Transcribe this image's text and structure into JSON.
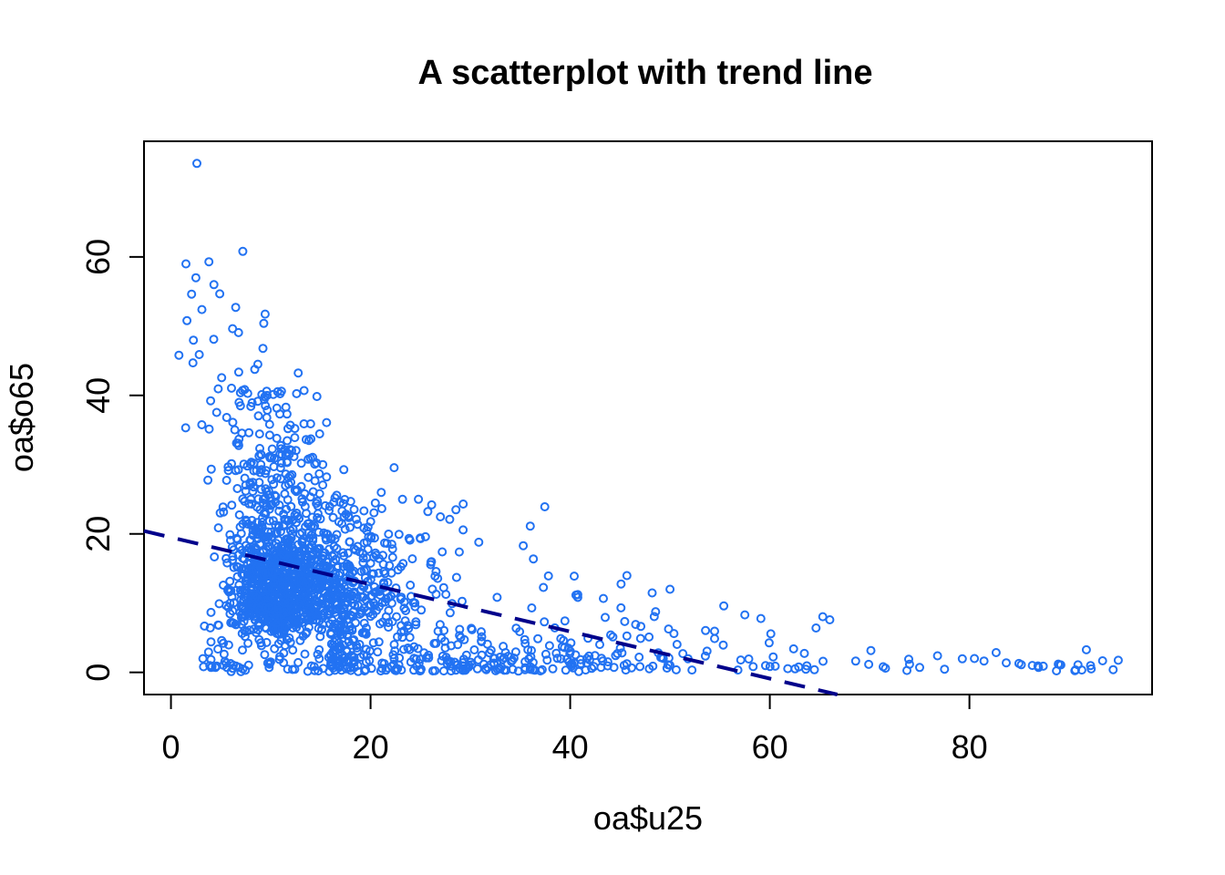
{
  "chart_data": {
    "type": "scatter",
    "title": "A scatterplot with trend line",
    "xlabel": "oa$u25",
    "ylabel": "oa$o65",
    "x_ticks": [
      0,
      20,
      40,
      60,
      80
    ],
    "y_ticks": [
      0,
      20,
      40,
      60
    ],
    "xlim": [
      -2.7,
      98.3
    ],
    "ylim": [
      -3.2,
      76.7
    ],
    "grid": false,
    "legend": "none",
    "background_color": "#ffffff",
    "frame_color": "#000000",
    "point_style": {
      "shape": "open-circle",
      "color": "#2272f2",
      "radius": 4,
      "stroke_width": 2
    },
    "trend_line": {
      "type": "linear",
      "intercept": 19.5,
      "slope": -0.34,
      "color": "#00008B",
      "style": "dashed",
      "dash": [
        23,
        15
      ],
      "width": 4,
      "x_at_y0": 57.4
    },
    "point_cloud_summary": {
      "n_points_approx": 1920,
      "x_range_observed": [
        0.8,
        94.4
      ],
      "y_range_observed": [
        0.1,
        73.5
      ],
      "main_cluster_center": [
        12,
        14
      ],
      "description": "dense cluster near x 5-22 / y 3-30, thinning spread to x 50, sparse low tail to x 95, vertical outlier column up to y 73 at small x"
    },
    "point_distribution": {
      "seed": 7,
      "clusters": [
        {
          "name": "core",
          "n": 1250,
          "x": {
            "dist": "lognormal",
            "mu": 2.49,
            "sigma": 0.32,
            "min": 3.5,
            "max": 28
          },
          "y": {
            "dist": "lognormal",
            "mu": 2.62,
            "sigma": 0.43,
            "min": 1.2,
            "max": 33
          }
        },
        {
          "name": "upper-band",
          "n": 105,
          "x": {
            "dist": "normal",
            "mean": 10.5,
            "sd": 3.4,
            "min": 3,
            "max": 21
          },
          "y": {
            "dist": "power",
            "min": 25,
            "max": 41,
            "power": 1.3
          }
        },
        {
          "name": "high-outliers",
          "n": 22,
          "x": {
            "dist": "normal",
            "mean": 7,
            "sd": 2.8,
            "min": 1,
            "max": 14
          },
          "y": {
            "dist": "uniform",
            "min": 35,
            "max": 50
          }
        },
        {
          "name": "top-outliers",
          "n": 4,
          "x": {
            "dist": "uniform",
            "min": 2,
            "max": 10
          },
          "y": {
            "dist": "uniform",
            "min": 50,
            "max": 56
          }
        },
        {
          "name": "left-edge",
          "n": 28,
          "x": {
            "dist": "uniform",
            "min": 3.2,
            "max": 6.5
          },
          "y": {
            "dist": "exp",
            "scale": 6,
            "min": 0.5,
            "max": 22
          }
        },
        {
          "name": "mid-spread",
          "n": 290,
          "x": {
            "dist": "power",
            "min": 16,
            "max": 50,
            "power": 1.6
          },
          "y": {
            "dist": "exp",
            "scale": 4.8,
            "min": 0.2,
            "max": 17
          }
        },
        {
          "name": "mid-high",
          "n": 14,
          "x": {
            "dist": "normal",
            "mean": 27,
            "sd": 5,
            "min": 20,
            "max": 40
          },
          "y": {
            "dist": "uniform",
            "min": 16,
            "max": 25
          }
        },
        {
          "name": "bottom-band",
          "n": 120,
          "x": {
            "dist": "power",
            "min": 4,
            "max": 44,
            "power": 1.2
          },
          "y": {
            "dist": "exp",
            "scale": 1.5,
            "min": 0.1,
            "max": 4.5
          }
        },
        {
          "name": "right-mid",
          "n": 42,
          "x": {
            "dist": "power",
            "min": 48,
            "max": 72,
            "power": 1.2
          },
          "y": {
            "dist": "exp",
            "scale": 2.6,
            "min": 0.3,
            "max": 12
          }
        },
        {
          "name": "far-right",
          "n": 26,
          "x": {
            "dist": "uniform",
            "min": 70,
            "max": 95
          },
          "y": {
            "dist": "exp",
            "scale": 1.0,
            "min": 0.2,
            "max": 3.5
          }
        }
      ],
      "fixed_points": [
        [
          2.6,
          73.5
        ],
        [
          7.2,
          60.8
        ],
        [
          1.5,
          59.0
        ],
        [
          3.8,
          59.3
        ],
        [
          2.5,
          57.0
        ],
        [
          4.3,
          56.0
        ],
        [
          3.1,
          52.4
        ],
        [
          1.6,
          50.8
        ],
        [
          9.3,
          50.4
        ],
        [
          0.8,
          45.8
        ],
        [
          2.2,
          44.7
        ],
        [
          24.8,
          25.0
        ],
        [
          23.2,
          25.0
        ],
        [
          35.3,
          18.3
        ],
        [
          40.4,
          13.9
        ],
        [
          50.0,
          12.0
        ],
        [
          57.5,
          8.3
        ],
        [
          94.4,
          0.4
        ],
        [
          92.2,
          0.5
        ],
        [
          88.9,
          1.2
        ],
        [
          87.4,
          0.9
        ],
        [
          86.3,
          1.0
        ],
        [
          85.2,
          1.1
        ],
        [
          76.8,
          2.4
        ],
        [
          80.5,
          2.0
        ]
      ]
    }
  }
}
